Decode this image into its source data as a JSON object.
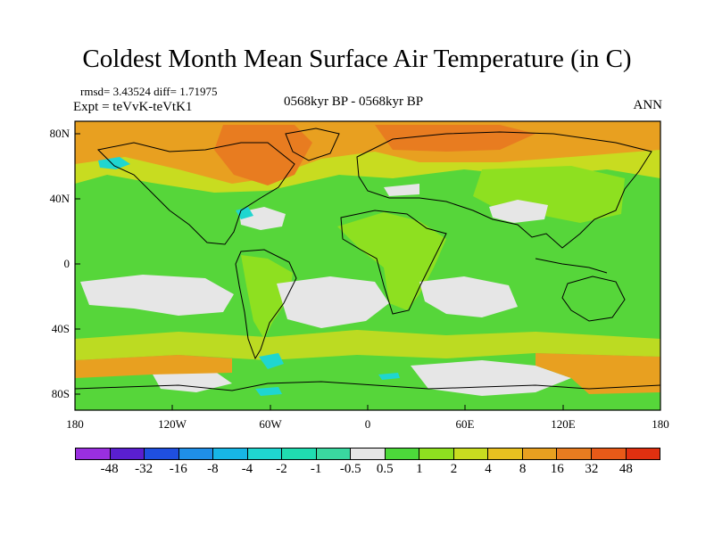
{
  "title": "Coldest Month Mean Surface Air Temperature (in C)",
  "stats": "rmsd= 3.43524 diff= 1.71975",
  "experiment": "Expt = teVvK-teVtK1",
  "period": "0568kyr BP - 0568kyr BP",
  "season": "ANN",
  "axes": {
    "y_ticks": [
      "80N",
      "40N",
      "0",
      "40S",
      "80S"
    ],
    "x_ticks": [
      "180",
      "120W",
      "60W",
      "0",
      "60E",
      "120E",
      "180"
    ]
  },
  "colorbar": {
    "labels": [
      "-48",
      "-32",
      "-16",
      "-8",
      "-4",
      "-2",
      "-1",
      "-0.5",
      "0.5",
      "1",
      "2",
      "4",
      "8",
      "16",
      "32",
      "48"
    ],
    "colors": [
      "#9a2fe0",
      "#5a1fd0",
      "#1f4fe0",
      "#1f8fe8",
      "#17b6e6",
      "#1fd6d0",
      "#20dcb0",
      "#3ad8a0",
      "#e6e6e6",
      "#4cd93a",
      "#8ee020",
      "#c8dc20",
      "#e8c020",
      "#e8a020",
      "#e87c20",
      "#e85a18",
      "#e03010"
    ]
  }
}
